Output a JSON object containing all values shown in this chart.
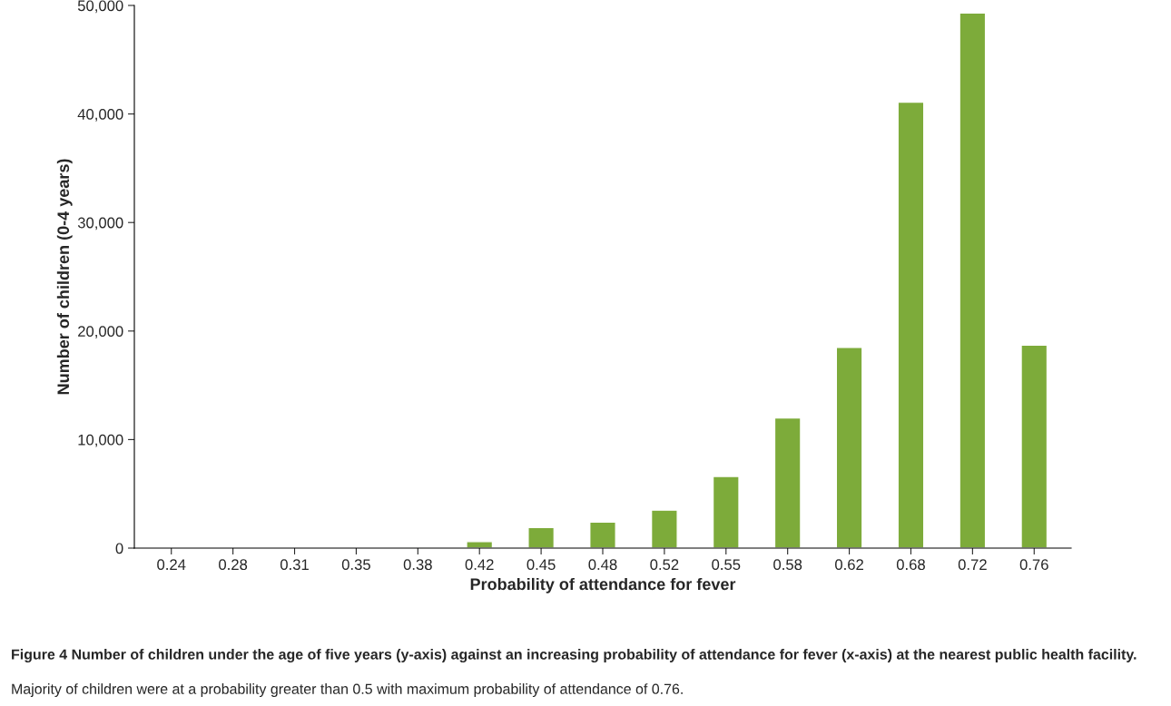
{
  "chart_data": {
    "type": "bar",
    "xlabel": "Probability of attendance for fever",
    "ylabel": "Number of children (0-4 years)",
    "categories": [
      "0.24",
      "0.28",
      "0.31",
      "0.35",
      "0.38",
      "0.42",
      "0.45",
      "0.48",
      "0.52",
      "0.55",
      "0.58",
      "0.62",
      "0.68",
      "0.72",
      "0.76"
    ],
    "values": [
      null,
      null,
      null,
      null,
      100,
      600,
      1900,
      2400,
      3500,
      6600,
      12000,
      18500,
      41100,
      49300,
      18700
    ],
    "color": "#7dab3a",
    "ylim": [
      0,
      50000
    ],
    "yticks": [
      {
        "value": 0,
        "label": "0"
      },
      {
        "value": 10000,
        "label": "10,000"
      },
      {
        "value": 20000,
        "label": "20,000"
      },
      {
        "value": 30000,
        "label": "30,000"
      },
      {
        "value": 40000,
        "label": "40,000"
      },
      {
        "value": 50000,
        "label": "50,000"
      }
    ],
    "grid": false,
    "legend": false,
    "annotations": [
      "Figure 4 Number of children under the age of five years (y-axis) against an increasing probability of attendance for fever (x-axis) at the nearest public health facility.",
      "Majority of children were at a probability greater than 0.5 with maximum probability of attendance of 0.76."
    ]
  }
}
